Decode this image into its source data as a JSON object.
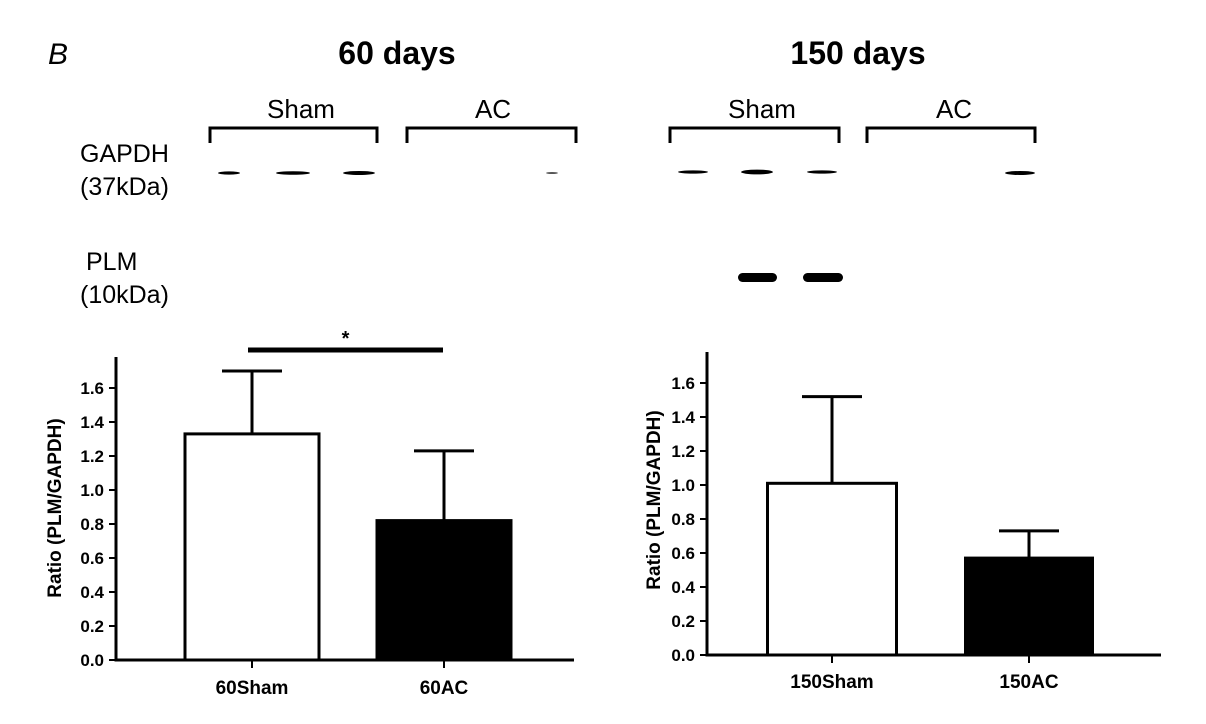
{
  "panel_label": "B",
  "blot_labels": {
    "gapdh": "GAPDH",
    "gapdh_kda": "(37kDa)",
    "plm": "PLM",
    "plm_kda": "(10kDa)"
  },
  "colors": {
    "sham_fill": "#ffffff",
    "ac_fill": "#000000",
    "stroke": "#000000"
  },
  "chart_data": [
    {
      "type": "bar",
      "title": "60 days",
      "groups": [
        "Sham",
        "AC"
      ],
      "categories": [
        "60Sham",
        "60AC"
      ],
      "values": [
        1.33,
        0.82
      ],
      "error": [
        0.37,
        0.41
      ],
      "ylabel": "Ratio (PLM/GAPDH)",
      "ylim": [
        0,
        1.7
      ],
      "yticks": [
        "0.0",
        "0.2",
        "0.4",
        "0.6",
        "0.8",
        "1.0",
        "1.2",
        "1.4",
        "1.6"
      ],
      "significance": "*"
    },
    {
      "type": "bar",
      "title": "150 days",
      "groups": [
        "Sham",
        "AC"
      ],
      "categories": [
        "150Sham",
        "150AC"
      ],
      "values": [
        1.01,
        0.57
      ],
      "error": [
        0.51,
        0.16
      ],
      "ylabel": "Ratio (PLM/GAPDH)",
      "ylim": [
        0,
        1.7
      ],
      "yticks": [
        "0.0",
        "0.2",
        "0.4",
        "0.6",
        "0.8",
        "1.0",
        "1.2",
        "1.4",
        "1.6"
      ]
    }
  ]
}
